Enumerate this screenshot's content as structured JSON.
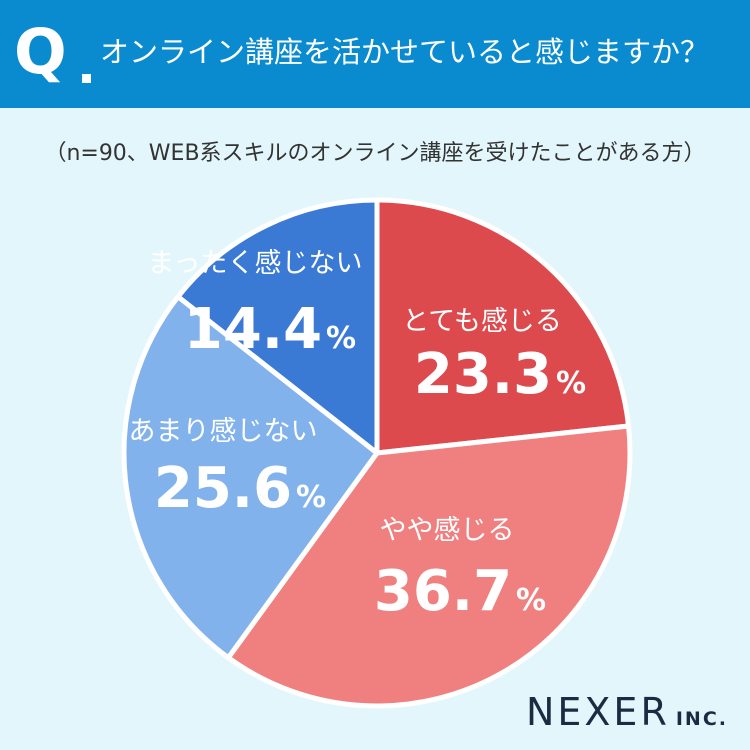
{
  "header": {
    "q_letter": "Q",
    "title": "オンライン講座を活かせていると感じますか？"
  },
  "subtitle": "（n=90、WEB系スキルのオンライン講座を受けたことがある方）",
  "chart_data": {
    "type": "pie",
    "title": "オンライン講座を活かせていると感じますか？",
    "subtitle": "（n=90、WEB系スキルのオンライン講座を受けたことがある方）",
    "series": [
      {
        "label": "とても感じる",
        "value": 23.3,
        "color": "#dd4a4e"
      },
      {
        "label": "やや感じる",
        "value": 36.7,
        "color": "#f08080"
      },
      {
        "label": "あまり感じない",
        "value": 25.6,
        "color": "#82b2ec"
      },
      {
        "label": "まったく感じない",
        "value": 14.4,
        "color": "#3a79d4"
      }
    ],
    "unit": "%"
  },
  "logo": {
    "main": "NEXER",
    "sub": "INC."
  }
}
